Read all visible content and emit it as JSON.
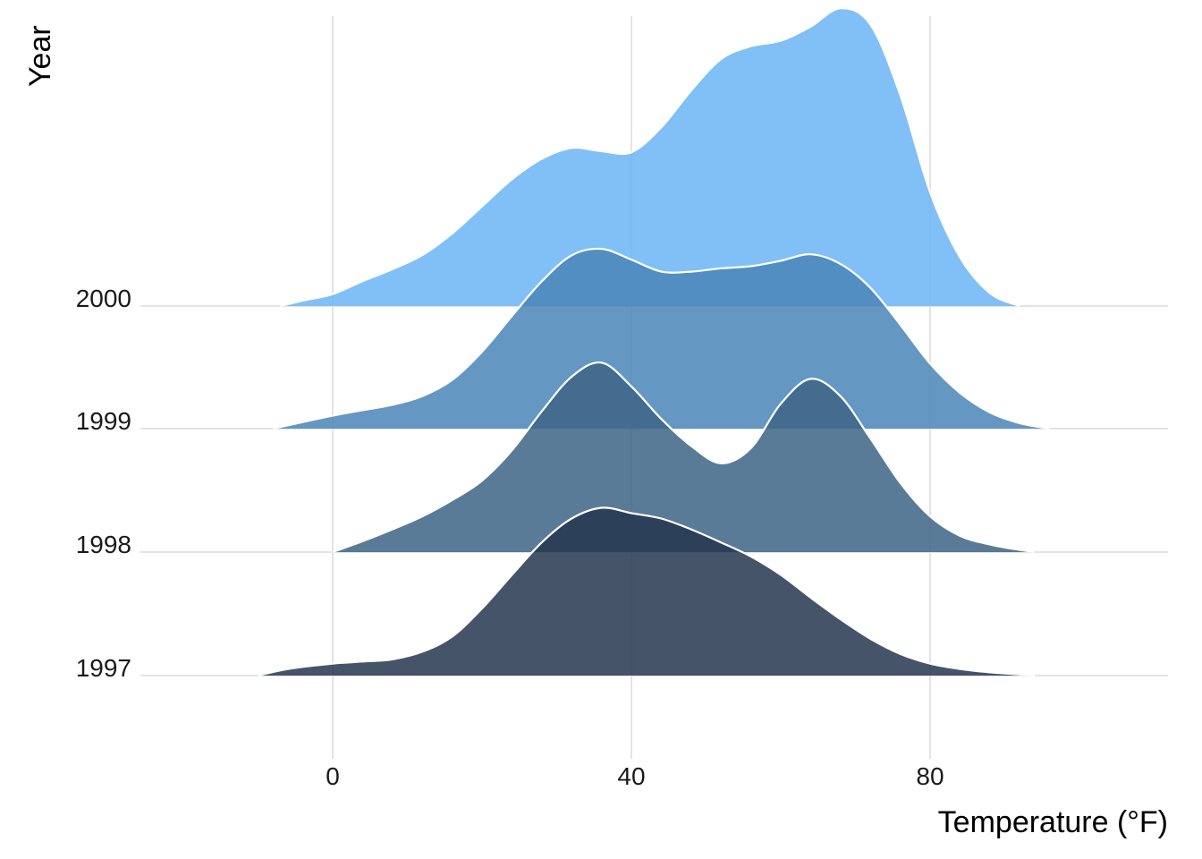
{
  "chart_data": {
    "type": "area",
    "subtype": "ridgeline-density",
    "xlabel": "Temperature (°F)",
    "ylabel": "Year",
    "xlim": [
      -24,
      112
    ],
    "x_ticks": [
      0,
      40,
      80
    ],
    "x_tick_labels": [
      "0",
      "40",
      "80"
    ],
    "categories": [
      "1997",
      "1998",
      "1999",
      "2000"
    ],
    "grid": true,
    "legend": "none",
    "series": [
      {
        "name": "1997",
        "color": "#24364f",
        "x": [
          -10,
          -6,
          0,
          4,
          8,
          12,
          16,
          20,
          24,
          28,
          32,
          36,
          40,
          44,
          48,
          52,
          56,
          60,
          64,
          68,
          72,
          76,
          80,
          84,
          88,
          92,
          94
        ],
        "y": [
          0.0,
          0.06,
          0.11,
          0.13,
          0.15,
          0.22,
          0.36,
          0.62,
          0.93,
          1.23,
          1.45,
          1.55,
          1.5,
          1.45,
          1.35,
          1.23,
          1.1,
          0.93,
          0.72,
          0.52,
          0.34,
          0.2,
          0.11,
          0.06,
          0.03,
          0.01,
          0.0
        ]
      },
      {
        "name": "1998",
        "color": "#3d6486",
        "x": [
          0,
          4,
          8,
          12,
          16,
          20,
          24,
          28,
          32,
          36,
          40,
          44,
          48,
          52,
          56,
          60,
          64,
          68,
          72,
          76,
          80,
          84,
          88,
          92,
          94
        ],
        "y": [
          0.0,
          0.1,
          0.21,
          0.33,
          0.48,
          0.66,
          0.94,
          1.3,
          1.62,
          1.75,
          1.53,
          1.23,
          0.98,
          0.82,
          0.96,
          1.37,
          1.6,
          1.44,
          1.05,
          0.64,
          0.33,
          0.15,
          0.07,
          0.02,
          0.0
        ]
      },
      {
        "name": "1999",
        "color": "#4a85b8",
        "x": [
          -8,
          -4,
          0,
          4,
          8,
          12,
          16,
          20,
          24,
          28,
          32,
          36,
          40,
          44,
          48,
          52,
          56,
          60,
          64,
          68,
          72,
          76,
          80,
          84,
          88,
          92,
          96
        ],
        "y": [
          0.0,
          0.06,
          0.12,
          0.17,
          0.22,
          0.3,
          0.45,
          0.71,
          1.04,
          1.36,
          1.6,
          1.66,
          1.56,
          1.45,
          1.45,
          1.48,
          1.5,
          1.55,
          1.61,
          1.52,
          1.3,
          0.96,
          0.6,
          0.33,
          0.15,
          0.05,
          0.0
        ]
      },
      {
        "name": "2000",
        "color": "#6bb5f4",
        "x": [
          -7,
          -4,
          0,
          4,
          8,
          12,
          16,
          20,
          24,
          28,
          32,
          36,
          40,
          44,
          48,
          52,
          56,
          60,
          64,
          68,
          72,
          76,
          80,
          84,
          88,
          92
        ],
        "y": [
          0.0,
          0.05,
          0.11,
          0.23,
          0.34,
          0.47,
          0.67,
          0.92,
          1.17,
          1.36,
          1.46,
          1.43,
          1.42,
          1.65,
          1.99,
          2.28,
          2.4,
          2.45,
          2.58,
          2.75,
          2.6,
          1.95,
          1.05,
          0.45,
          0.12,
          0.0
        ]
      }
    ]
  }
}
